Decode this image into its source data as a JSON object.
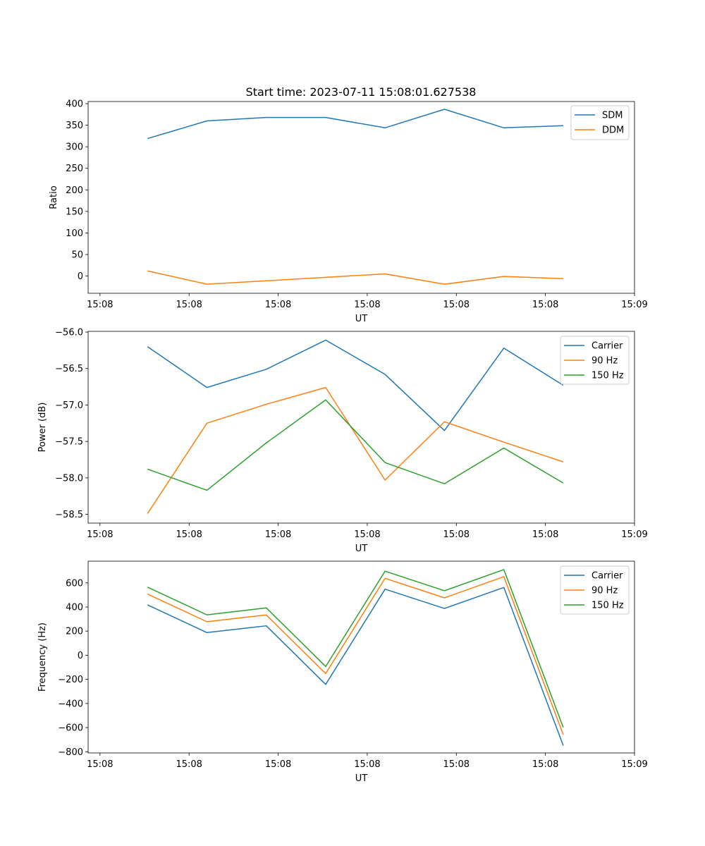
{
  "figure_title": "Start time: 2023-07-11 15:08:01.627538",
  "chart_data": [
    {
      "type": "line",
      "title": "Start time: 2023-07-11 15:08:01.627538",
      "xlabel": "UT",
      "ylabel": "Ratio",
      "x": [
        1,
        2,
        3,
        4,
        5,
        6,
        7,
        8
      ],
      "xlim": [
        0,
        9.2
      ],
      "xticks": [
        0.2,
        1.7,
        3.2,
        4.7,
        6.2,
        7.7,
        9.2
      ],
      "xtick_labels": [
        "15:08",
        "15:08",
        "15:08",
        "15:08",
        "15:08",
        "15:08",
        "15:09"
      ],
      "ylim": [
        -40,
        405
      ],
      "yticks": [
        0,
        50,
        100,
        150,
        200,
        250,
        300,
        350,
        400
      ],
      "ytick_labels": [
        "0",
        "50",
        "100",
        "150",
        "200",
        "250",
        "300",
        "350",
        "400"
      ],
      "legend": "top-right",
      "series": [
        {
          "name": "SDM",
          "color": "#1f77b4",
          "values": [
            319,
            360,
            368,
            368,
            344,
            387,
            344,
            349
          ]
        },
        {
          "name": "DDM",
          "color": "#ff7f0e",
          "values": [
            12,
            -19,
            -11,
            -3,
            5,
            -19,
            -1,
            -6
          ]
        }
      ]
    },
    {
      "type": "line",
      "title": "",
      "xlabel": "UT",
      "ylabel": "Power (dB)",
      "x": [
        1,
        2,
        3,
        4,
        5,
        6,
        7,
        8
      ],
      "xlim": [
        0,
        9.2
      ],
      "xticks": [
        0.2,
        1.7,
        3.2,
        4.7,
        6.2,
        7.7,
        9.2
      ],
      "xtick_labels": [
        "15:08",
        "15:08",
        "15:08",
        "15:08",
        "15:08",
        "15:08",
        "15:09"
      ],
      "ylim": [
        -58.62,
        -55.99
      ],
      "yticks": [
        -58.5,
        -58.0,
        -57.5,
        -57.0,
        -56.5,
        -56.0
      ],
      "ytick_labels": [
        "−58.5",
        "−58.0",
        "−57.5",
        "−57.0",
        "−56.5",
        "−56.0"
      ],
      "legend": "top-right",
      "series": [
        {
          "name": "Carrier",
          "color": "#1f77b4",
          "values": [
            -56.2,
            -56.76,
            -56.51,
            -56.11,
            -56.58,
            -57.35,
            -56.22,
            -56.73
          ]
        },
        {
          "name": "90 Hz",
          "color": "#ff7f0e",
          "values": [
            -58.49,
            -57.25,
            -56.99,
            -56.76,
            -58.03,
            -57.23,
            -57.51,
            -57.78
          ]
        },
        {
          "name": "150 Hz",
          "color": "#2ca02c",
          "values": [
            -57.88,
            -58.17,
            -57.52,
            -56.93,
            -57.79,
            -58.08,
            -57.59,
            -58.07
          ]
        }
      ]
    },
    {
      "type": "line",
      "title": "",
      "xlabel": "UT",
      "ylabel": "Frequency (Hz)",
      "x": [
        1,
        2,
        3,
        4,
        5,
        6,
        7,
        8
      ],
      "xlim": [
        0,
        9.2
      ],
      "xticks": [
        0.2,
        1.7,
        3.2,
        4.7,
        6.2,
        7.7,
        9.2
      ],
      "xtick_labels": [
        "15:08",
        "15:08",
        "15:08",
        "15:08",
        "15:08",
        "15:08",
        "15:09"
      ],
      "ylim": [
        -810,
        780
      ],
      "yticks": [
        -800,
        -600,
        -400,
        -200,
        0,
        200,
        400,
        600
      ],
      "ytick_labels": [
        "−800",
        "−600",
        "−400",
        "−200",
        "0",
        "200",
        "400",
        "600"
      ],
      "legend": "top-right",
      "series": [
        {
          "name": "Carrier",
          "color": "#1f77b4",
          "values": [
            418,
            188,
            244,
            -242,
            548,
            388,
            562,
            -748
          ]
        },
        {
          "name": "90 Hz",
          "color": "#ff7f0e",
          "values": [
            508,
            278,
            334,
            -152,
            638,
            476,
            652,
            -658
          ]
        },
        {
          "name": "150 Hz",
          "color": "#2ca02c",
          "values": [
            565,
            335,
            393,
            -93,
            697,
            535,
            710,
            -598
          ]
        }
      ]
    }
  ]
}
